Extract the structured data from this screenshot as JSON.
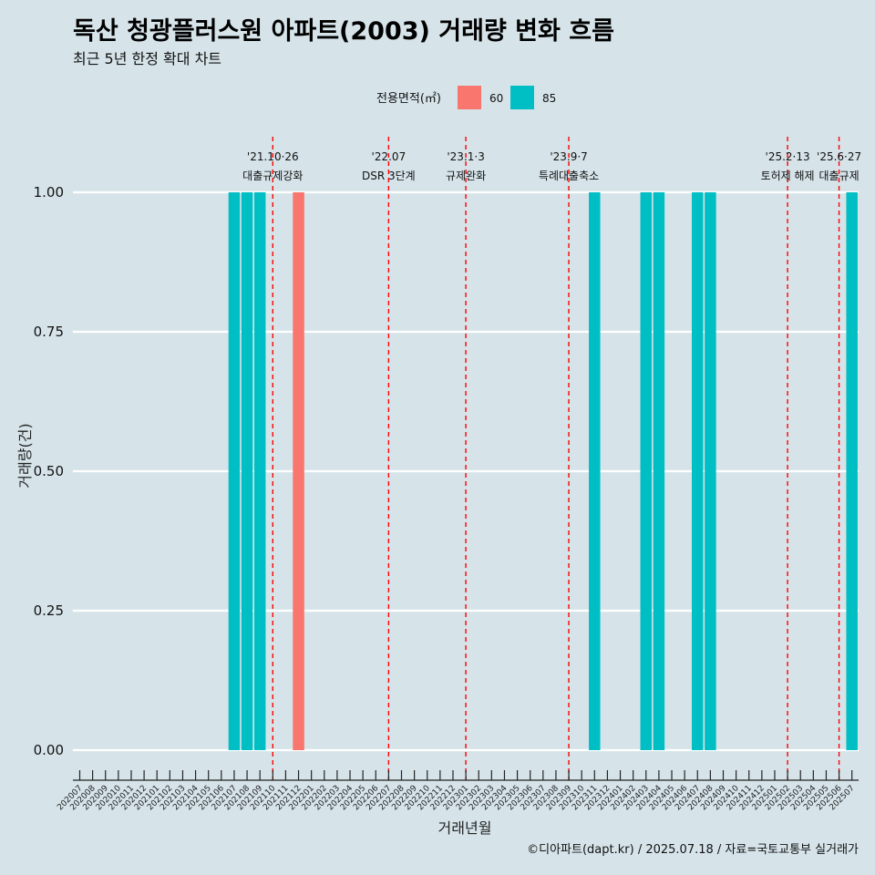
{
  "chart_data": {
    "type": "bar",
    "title": "독산 청광플러스원 아파트(2003) 거래량 변화 흐름",
    "subtitle": "최근 5년 한정 확대 차트",
    "xlabel": "거래년월",
    "ylabel": "거래량(건)",
    "ylim": [
      0,
      1
    ],
    "yticks": [
      "0.00",
      "0.25",
      "0.50",
      "0.75",
      "1.00"
    ],
    "legend": {
      "title": "전용면적(㎡)",
      "placement": "top"
    },
    "categories": [
      "202007",
      "202008",
      "202009",
      "202010",
      "202011",
      "202012",
      "202101",
      "202102",
      "202103",
      "202104",
      "202105",
      "202106",
      "202107",
      "202108",
      "202109",
      "202110",
      "202111",
      "202112",
      "202201",
      "202202",
      "202203",
      "202204",
      "202205",
      "202206",
      "202207",
      "202208",
      "202209",
      "202210",
      "202211",
      "202212",
      "202301",
      "202302",
      "202303",
      "202304",
      "202305",
      "202306",
      "202307",
      "202308",
      "202309",
      "202310",
      "202311",
      "202312",
      "202401",
      "202402",
      "202403",
      "202404",
      "202405",
      "202406",
      "202407",
      "202408",
      "202409",
      "202410",
      "202411",
      "202412",
      "202501",
      "202502",
      "202503",
      "202504",
      "202505",
      "202506",
      "202507"
    ],
    "series": [
      {
        "name": "60",
        "color": "#f8766d",
        "points": [
          {
            "x": "202112",
            "y": 1
          }
        ]
      },
      {
        "name": "85",
        "color": "#00bfc4",
        "points": [
          {
            "x": "202107",
            "y": 1
          },
          {
            "x": "202108",
            "y": 1
          },
          {
            "x": "202109",
            "y": 1
          },
          {
            "x": "202311",
            "y": 1
          },
          {
            "x": "202403",
            "y": 1
          },
          {
            "x": "202404",
            "y": 1
          },
          {
            "x": "202407",
            "y": 1
          },
          {
            "x": "202408",
            "y": 1
          },
          {
            "x": "202507",
            "y": 1
          }
        ]
      }
    ],
    "events": [
      {
        "x": "202110",
        "date": "'21.10·26",
        "label": "대출규제강화"
      },
      {
        "x": "202207",
        "date": "'22.07",
        "label": "DSR 3단계"
      },
      {
        "x": "202301",
        "date": "'23.1·3",
        "label": "규제완화"
      },
      {
        "x": "202309",
        "date": "'23.9·7",
        "label": "특례대출축소"
      },
      {
        "x": "202502",
        "date": "'25.2·13",
        "label": "토허제 해제"
      },
      {
        "x": "202506",
        "date": "'25.6·27",
        "label": "대출규제"
      }
    ],
    "event_line_color": "#ff0000",
    "grid": true
  },
  "caption": "©디아파트(dapt.kr) / 2025.07.18 / 자료=국토교통부 실거래가"
}
